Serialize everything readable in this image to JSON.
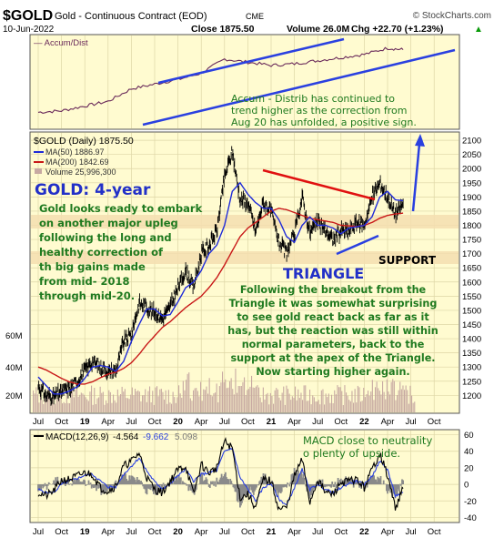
{
  "header": {
    "symbol": "$GOLD",
    "name": "Gold - Continuous Contract (EOD)",
    "exchange": "CME",
    "brand": "© StockCharts.com",
    "date": "10-Jun-2022",
    "close_label": "Close 1875.50",
    "volume_label": "Volume 26.0M",
    "chg_label": "Chg +22.70 (+1.23%)",
    "chg_arrow": "▲"
  },
  "colors": {
    "panel_bg": "#fffbd0",
    "price": "#000000",
    "ma50": "#1f2bd8",
    "ma200": "#c81818",
    "volume": "#c7a9a2",
    "annotation_text": "#1f7a1f",
    "blue_annotation": "#2230c8",
    "support_band": "#f5deb0",
    "trendline_red": "#e01010",
    "trendline_blue": "#2a40e0",
    "macd_line": "#000000",
    "signal_line": "#2a40e0",
    "histogram": "#8a8a8a"
  },
  "top_panel": {
    "legend": "— Accum/Dist",
    "annotation": [
      "Accum - Distrib has continued to",
      "trend higher as the correction from",
      "Aug 20 has unfolded, a positive sign."
    ]
  },
  "main_panel": {
    "legend_title": "$GOLD (Daily) 1875.50",
    "legend_ma50": "MA(50) 1886.97",
    "legend_ma200": "MA(200) 1842.69",
    "legend_volume": "Volume 25,996,300",
    "title_big": "GOLD: 4-year",
    "desc": [
      "Gold looks ready to embark",
      "on another major upleg",
      "following the long and",
      "healthy correction of",
      "th big gains made",
      "from mid- 2018",
      "through mid-20."
    ],
    "triangle_label": "TRIANGLE",
    "support_label": "SUPPORT",
    "body_text": [
      "Following the breakout from the",
      "Triangle it was somewhat surprising",
      "to see gold react back as far as it",
      "has, but the reaction was still within",
      "normal parameters, back to the",
      "support at the apex of the Triangle.",
      "Now starting higher again."
    ],
    "volume_axis": [
      "60M",
      "40M",
      "20M"
    ]
  },
  "macd_panel": {
    "legend_name": "MACD(12,26,9)",
    "legend_macd": "-4.564",
    "legend_signal": "-9.662",
    "legend_hist": "5.098",
    "annotation": [
      "MACD close to neutrality",
      "o plenty of upside."
    ]
  },
  "x_ticks": [
    "Jul",
    "Oct",
    "19",
    "Apr",
    "Jul",
    "Oct",
    "20",
    "Apr",
    "Jul",
    "Oct",
    "21",
    "Apr",
    "Jul",
    "Oct",
    "22",
    "Apr",
    "Jul",
    "Oct"
  ],
  "chart_data": [
    {
      "type": "line",
      "title": "Accum/Dist",
      "x": [
        "2018-07",
        "2018-10",
        "2019-01",
        "2019-04",
        "2019-07",
        "2019-10",
        "2020-01",
        "2020-04",
        "2020-07",
        "2020-10",
        "2021-01",
        "2021-04",
        "2021-07",
        "2021-10",
        "2022-01",
        "2022-04",
        "2022-06"
      ],
      "series": [
        {
          "name": "Accum/Dist",
          "values": [
            10,
            12,
            18,
            24,
            40,
            46,
            52,
            60,
            78,
            74,
            70,
            72,
            76,
            80,
            84,
            92,
            90
          ]
        }
      ],
      "grid": true
    },
    {
      "type": "line",
      "title": "$GOLD (Daily) 1875.50",
      "x": [
        "2018-07",
        "2018-08",
        "2018-09",
        "2018-10",
        "2018-11",
        "2018-12",
        "2019-01",
        "2019-02",
        "2019-03",
        "2019-04",
        "2019-05",
        "2019-06",
        "2019-07",
        "2019-08",
        "2019-09",
        "2019-10",
        "2019-11",
        "2019-12",
        "2020-01",
        "2020-02",
        "2020-03",
        "2020-04",
        "2020-05",
        "2020-06",
        "2020-07",
        "2020-08",
        "2020-09",
        "2020-10",
        "2020-11",
        "2020-12",
        "2021-01",
        "2021-02",
        "2021-03",
        "2021-04",
        "2021-05",
        "2021-06",
        "2021-07",
        "2021-08",
        "2021-09",
        "2021-10",
        "2021-11",
        "2021-12",
        "2022-01",
        "2022-02",
        "2022-03",
        "2022-04",
        "2022-05",
        "2022-06"
      ],
      "series": [
        {
          "name": "$GOLD",
          "values": [
            1230,
            1200,
            1195,
            1215,
            1222,
            1250,
            1290,
            1320,
            1300,
            1285,
            1285,
            1390,
            1415,
            1525,
            1510,
            1495,
            1470,
            1515,
            1580,
            1640,
            1580,
            1700,
            1730,
            1780,
            1970,
            2060,
            1890,
            1880,
            1780,
            1880,
            1850,
            1740,
            1700,
            1770,
            1900,
            1770,
            1815,
            1780,
            1750,
            1780,
            1780,
            1810,
            1800,
            1900,
            1950,
            1900,
            1840,
            1875
          ]
        },
        {
          "name": "MA(50)",
          "values": [
            1265,
            1235,
            1205,
            1205,
            1215,
            1230,
            1260,
            1300,
            1305,
            1300,
            1285,
            1320,
            1390,
            1450,
            1505,
            1505,
            1480,
            1485,
            1530,
            1580,
            1600,
            1640,
            1700,
            1730,
            1800,
            1920,
            1950,
            1910,
            1880,
            1860,
            1860,
            1820,
            1760,
            1740,
            1800,
            1830,
            1800,
            1800,
            1790,
            1770,
            1790,
            1795,
            1800,
            1830,
            1900,
            1920,
            1890,
            1887
          ]
        },
        {
          "name": "MA(200)",
          "values": [
            1300,
            1290,
            1275,
            1260,
            1248,
            1240,
            1240,
            1248,
            1262,
            1275,
            1282,
            1295,
            1315,
            1345,
            1380,
            1410,
            1440,
            1460,
            1485,
            1510,
            1530,
            1550,
            1580,
            1615,
            1660,
            1710,
            1760,
            1790,
            1810,
            1830,
            1850,
            1860,
            1855,
            1845,
            1835,
            1825,
            1820,
            1815,
            1810,
            1800,
            1798,
            1796,
            1800,
            1810,
            1825,
            1835,
            1840,
            1843
          ]
        }
      ],
      "ylim": [
        1140,
        2110
      ],
      "y_ticks": [
        1200,
        1250,
        1300,
        1350,
        1400,
        1450,
        1500,
        1550,
        1600,
        1650,
        1700,
        1750,
        1800,
        1850,
        1900,
        1950,
        2000,
        2050,
        2100
      ]
    },
    {
      "type": "line",
      "title": "MACD(12,26,9)",
      "x": [
        "2018-07",
        "2018-08",
        "2018-09",
        "2018-10",
        "2018-11",
        "2018-12",
        "2019-01",
        "2019-02",
        "2019-03",
        "2019-04",
        "2019-05",
        "2019-06",
        "2019-07",
        "2019-08",
        "2019-09",
        "2019-10",
        "2019-11",
        "2019-12",
        "2020-01",
        "2020-02",
        "2020-03",
        "2020-04",
        "2020-05",
        "2020-06",
        "2020-07",
        "2020-08",
        "2020-09",
        "2020-10",
        "2020-11",
        "2020-12",
        "2021-01",
        "2021-02",
        "2021-03",
        "2021-04",
        "2021-05",
        "2021-06",
        "2021-07",
        "2021-08",
        "2021-09",
        "2021-10",
        "2021-11",
        "2021-12",
        "2022-01",
        "2022-02",
        "2022-03",
        "2022-04",
        "2022-05",
        "2022-06"
      ],
      "series": [
        {
          "name": "MACD",
          "values": [
            -10,
            -14,
            -8,
            5,
            6,
            10,
            14,
            12,
            -4,
            -8,
            -2,
            22,
            28,
            38,
            8,
            -6,
            -10,
            4,
            18,
            22,
            -12,
            24,
            14,
            20,
            52,
            44,
            -16,
            -12,
            -28,
            6,
            4,
            -30,
            -28,
            10,
            30,
            -22,
            6,
            -10,
            -12,
            2,
            4,
            6,
            -4,
            18,
            38,
            10,
            -28,
            -5
          ]
        },
        {
          "name": "Signal",
          "values": [
            -6,
            -10,
            -10,
            0,
            4,
            7,
            11,
            12,
            4,
            -3,
            -3,
            12,
            22,
            32,
            16,
            3,
            -5,
            0,
            11,
            18,
            4,
            12,
            14,
            17,
            40,
            44,
            8,
            -6,
            -20,
            -4,
            1,
            -18,
            -25,
            -4,
            18,
            -6,
            0,
            -6,
            -10,
            -4,
            1,
            4,
            0,
            10,
            28,
            18,
            -14,
            -10
          ]
        }
      ],
      "ylim": [
        -45,
        65
      ],
      "y_ticks": [
        -40,
        -20,
        0,
        20,
        40,
        60
      ]
    }
  ]
}
